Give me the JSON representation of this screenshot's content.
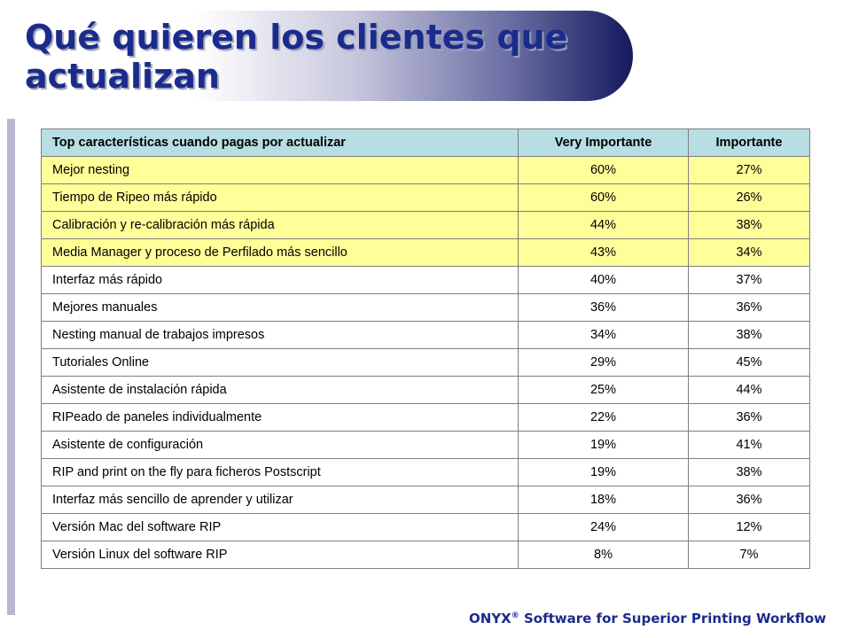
{
  "slide": {
    "title": "Qué quieren los clientes que actualizan"
  },
  "table": {
    "headers": [
      "Top características cuando pagas por actualizar",
      "Very Importante",
      "Importante"
    ],
    "rows": [
      {
        "feature": "Mejor nesting",
        "very_important": "60%",
        "important": "27%",
        "highlighted": true
      },
      {
        "feature": "Tiempo de Ripeo más rápido",
        "very_important": "60%",
        "important": "26%",
        "highlighted": true
      },
      {
        "feature": "Calibración y re-calibración más rápida",
        "very_important": "44%",
        "important": "38%",
        "highlighted": true
      },
      {
        "feature": "Media Manager y proceso de Perfilado más sencillo",
        "very_important": "43%",
        "important": "34%",
        "highlighted": true
      },
      {
        "feature": "Interfaz más rápido",
        "very_important": "40%",
        "important": "37%",
        "highlighted": false
      },
      {
        "feature": "Mejores manuales",
        "very_important": "36%",
        "important": "36%",
        "highlighted": false
      },
      {
        "feature": "Nesting manual de trabajos impresos",
        "very_important": "34%",
        "important": "38%",
        "highlighted": false
      },
      {
        "feature": "Tutoriales Online",
        "very_important": "29%",
        "important": "45%",
        "highlighted": false
      },
      {
        "feature": "Asistente de instalación rápida",
        "very_important": "25%",
        "important": "44%",
        "highlighted": false
      },
      {
        "feature": "RIPeado de paneles individualmente",
        "very_important": "22%",
        "important": "36%",
        "highlighted": false
      },
      {
        "feature": "Asistente de configuración",
        "very_important": "19%",
        "important": "41%",
        "highlighted": false
      },
      {
        "feature": "RIP and print on the fly para ficheros Postscript",
        "very_important": "19%",
        "important": "38%",
        "highlighted": false
      },
      {
        "feature": "Interfaz más sencillo de aprender y utilizar",
        "very_important": "18%",
        "important": "36%",
        "highlighted": false
      },
      {
        "feature": "Versión Mac del software RIP",
        "very_important": "24%",
        "important": "12%",
        "highlighted": false
      },
      {
        "feature": "Versión Linux del software RIP",
        "very_important": "8%",
        "important": "7%",
        "highlighted": false
      }
    ]
  },
  "footer": {
    "brand": "ONYX",
    "registered": "®",
    "tagline": " Software for Superior Printing Workflow"
  },
  "colors": {
    "title_text": "#1b2b8c",
    "banner_end": "#131a5e",
    "header_fill": "#b7dee3",
    "highlight_fill": "#ffff99",
    "left_rule": "#b8b8d2"
  }
}
